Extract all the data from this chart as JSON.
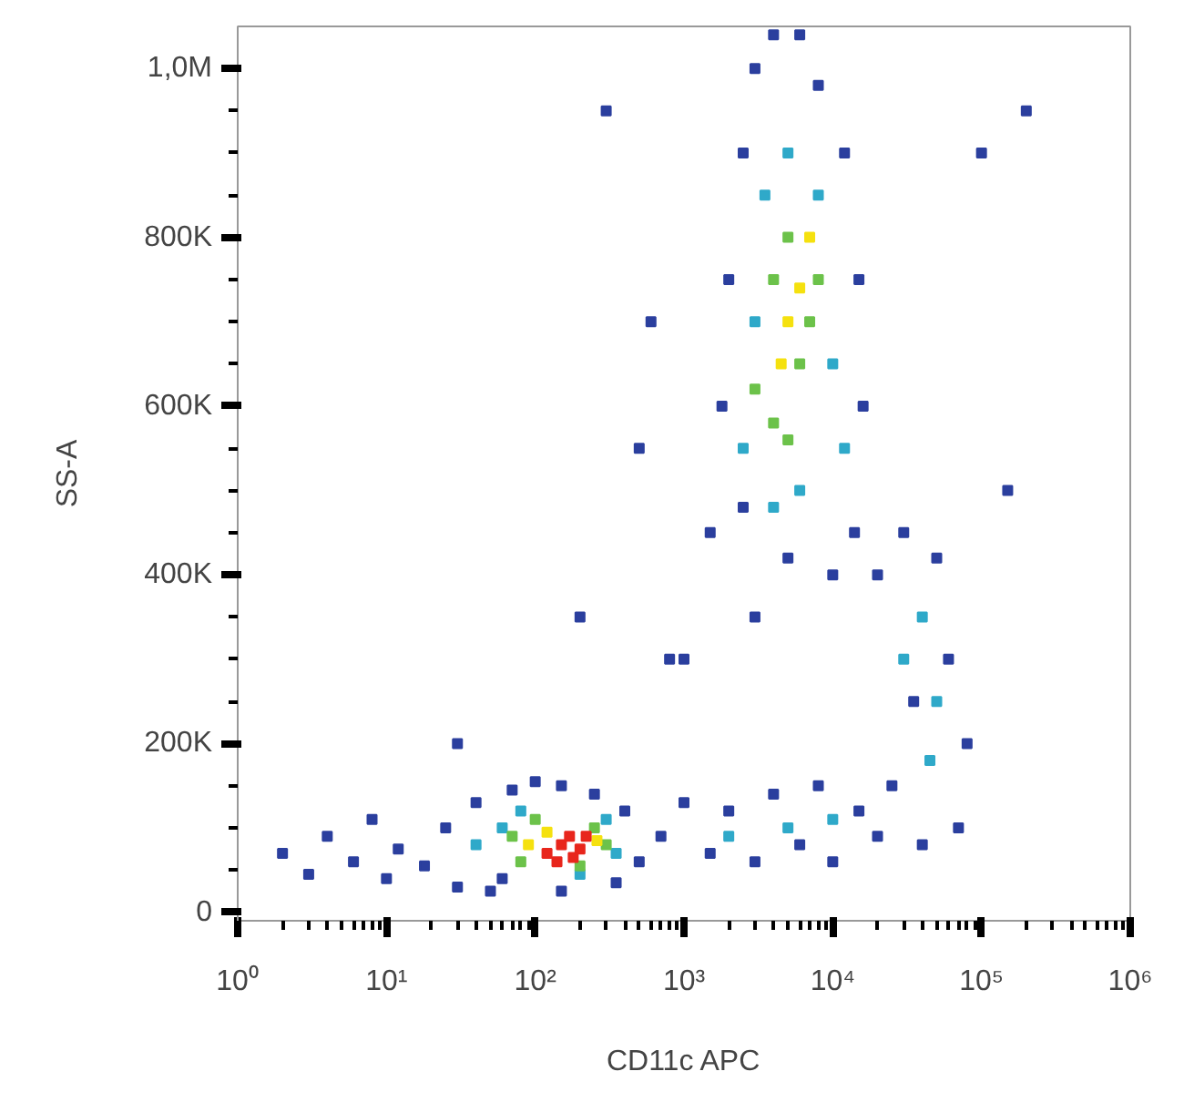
{
  "chart_data": {
    "type": "scatter",
    "xlabel": "CD11c APC",
    "ylabel": "SS-A",
    "log": "x",
    "marker": "square",
    "grid": false,
    "xlim": [
      1,
      1000000
    ],
    "xticks": [
      {
        "value": 1,
        "label": "10⁰"
      },
      {
        "value": 10,
        "label": "10¹"
      },
      {
        "value": 100,
        "label": "10²"
      },
      {
        "value": 1000,
        "label": "10³"
      },
      {
        "value": 10000,
        "label": "10⁴"
      },
      {
        "value": 100000,
        "label": "10⁵"
      },
      {
        "value": 1000000,
        "label": "10⁶"
      }
    ],
    "ylim": [
      -10000,
      1050000
    ],
    "yticks": [
      0,
      {
        "value": 200000,
        "label": "200K"
      },
      {
        "value": 400000,
        "label": "400K"
      },
      {
        "value": 600000,
        "label": "600K"
      },
      {
        "value": 800000,
        "label": "800K"
      },
      {
        "value": 1000000,
        "label": "1,0M"
      }
    ],
    "series": [
      {
        "color": "#2b3f9e",
        "x": [
          2,
          3,
          4,
          6,
          8,
          10,
          12,
          18,
          25,
          30,
          40,
          50,
          70,
          100,
          150,
          250,
          400,
          500,
          350,
          150,
          60,
          700,
          1000,
          1500,
          2000,
          3000,
          4000,
          6000,
          8000,
          10000,
          15000,
          20000,
          1500,
          1800,
          2000,
          2500,
          3000,
          4000,
          6000,
          8000,
          12000,
          15000,
          16000,
          14000,
          10000,
          5000,
          2500,
          3000,
          800,
          600,
          20000,
          30000,
          50000,
          60000,
          80000,
          70000,
          40000,
          25000,
          35000,
          300,
          500,
          100000,
          200000,
          150000,
          1000,
          200,
          30
        ],
        "values": [
          70000,
          45000,
          90000,
          60000,
          110000,
          40000,
          75000,
          55000,
          100000,
          30000,
          130000,
          25000,
          145000,
          155000,
          150000,
          140000,
          120000,
          60000,
          35000,
          25000,
          40000,
          90000,
          130000,
          70000,
          120000,
          60000,
          140000,
          80000,
          150000,
          60000,
          120000,
          90000,
          450000,
          600000,
          750000,
          900000,
          1000000,
          1040000,
          1040000,
          980000,
          900000,
          750000,
          600000,
          450000,
          400000,
          420000,
          480000,
          350000,
          300000,
          700000,
          400000,
          450000,
          420000,
          300000,
          200000,
          100000,
          80000,
          150000,
          250000,
          950000,
          550000,
          900000,
          950000,
          500000,
          300000,
          350000,
          200000
        ]
      },
      {
        "color": "#2fa9c9",
        "x": [
          2500,
          3000,
          3500,
          5000,
          8000,
          10000,
          6000,
          4000,
          12000,
          30000,
          40000,
          50000,
          45000,
          2000,
          5000,
          10000,
          60,
          80,
          300,
          350,
          40,
          200
        ],
        "values": [
          550000,
          700000,
          850000,
          900000,
          850000,
          650000,
          500000,
          480000,
          550000,
          300000,
          350000,
          250000,
          180000,
          90000,
          100000,
          110000,
          100000,
          120000,
          110000,
          70000,
          80000,
          45000
        ]
      },
      {
        "color": "#6cc24a",
        "x": [
          3000,
          4000,
          5000,
          6000,
          7000,
          4000,
          8000,
          5000,
          70,
          300,
          100,
          250,
          80,
          200
        ],
        "values": [
          620000,
          750000,
          800000,
          650000,
          700000,
          580000,
          750000,
          560000,
          90000,
          80000,
          110000,
          100000,
          60000,
          55000
        ]
      },
      {
        "color": "#f5e10f",
        "x": [
          5000,
          6000,
          4500,
          7000,
          90,
          120,
          260
        ],
        "values": [
          700000,
          740000,
          650000,
          800000,
          80000,
          95000,
          85000
        ]
      },
      {
        "color": "#e8261c",
        "x": [
          120,
          150,
          180,
          200,
          140,
          220,
          170
        ],
        "values": [
          70000,
          80000,
          65000,
          75000,
          60000,
          90000,
          90000
        ]
      }
    ]
  }
}
